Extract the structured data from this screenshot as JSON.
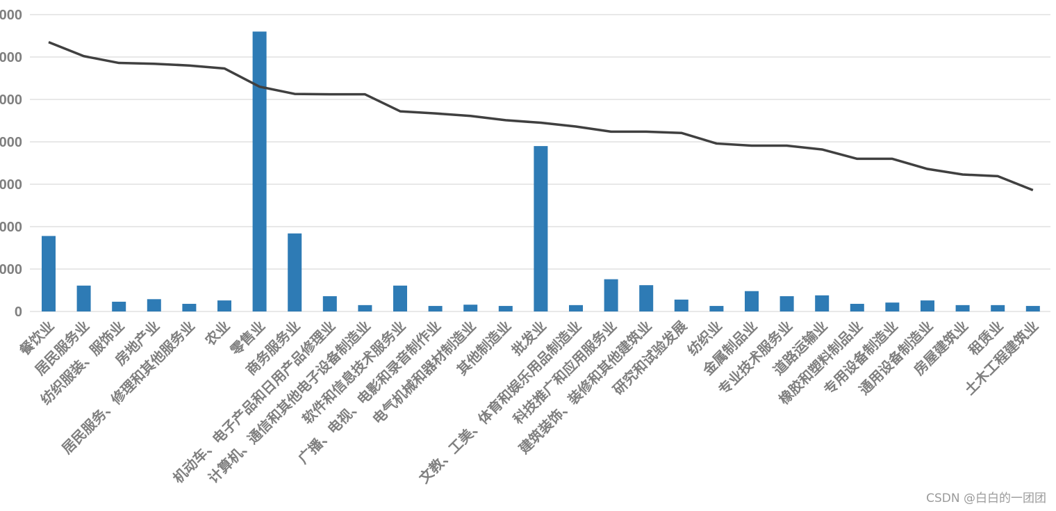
{
  "chart_data": {
    "type": "bar",
    "categories": [
      "餐饮业",
      "居民服务业",
      "纺织服装、服饰业",
      "房地产业",
      "居民服务、修理和其他服务业",
      "农业",
      "零售业",
      "商务服务业",
      "机动车、电子产品和日用产品修理业",
      "计算机、通信和其他电子设备制造业",
      "软件和信息技术服务业",
      "广播、电视、电影和录音制作业",
      "电气机械和器材制造业",
      "其他制造业",
      "批发业",
      "文教、工美、体育和娱乐用品制造业",
      "科技推广和应用服务业",
      "建筑装饰、装修和其他建筑业",
      "研究和试验发展",
      "纺织业",
      "金属制品业",
      "专业技术服务业",
      "道路运输业",
      "橡胶和塑料制品业",
      "专用设备制造业",
      "通用设备制造业",
      "房屋建筑业",
      "租赁业",
      "土木工程建筑业"
    ],
    "series": [
      {
        "type": "bar",
        "color": "#2e7bb5",
        "values": [
          1780,
          610,
          230,
          290,
          180,
          260,
          6600,
          1840,
          360,
          150,
          610,
          130,
          160,
          130,
          3900,
          150,
          760,
          620,
          280,
          130,
          480,
          360,
          380,
          180,
          210,
          260,
          150,
          150,
          130
        ]
      },
      {
        "type": "line",
        "color": "#404040",
        "values": [
          6350,
          6020,
          5860,
          5840,
          5800,
          5730,
          5300,
          5130,
          5120,
          5120,
          4720,
          4670,
          4610,
          4510,
          4450,
          4360,
          4240,
          4240,
          4210,
          3960,
          3910,
          3910,
          3820,
          3600,
          3600,
          3360,
          3230,
          3190,
          2860
        ]
      }
    ],
    "yticks": [
      "0",
      "000",
      "000",
      "000",
      "000",
      "000",
      "000",
      "000"
    ],
    "ylim": [
      0,
      7000
    ],
    "grid": true,
    "xlabel": "",
    "ylabel": ""
  },
  "watermark": "CSDN @白白的一团团"
}
